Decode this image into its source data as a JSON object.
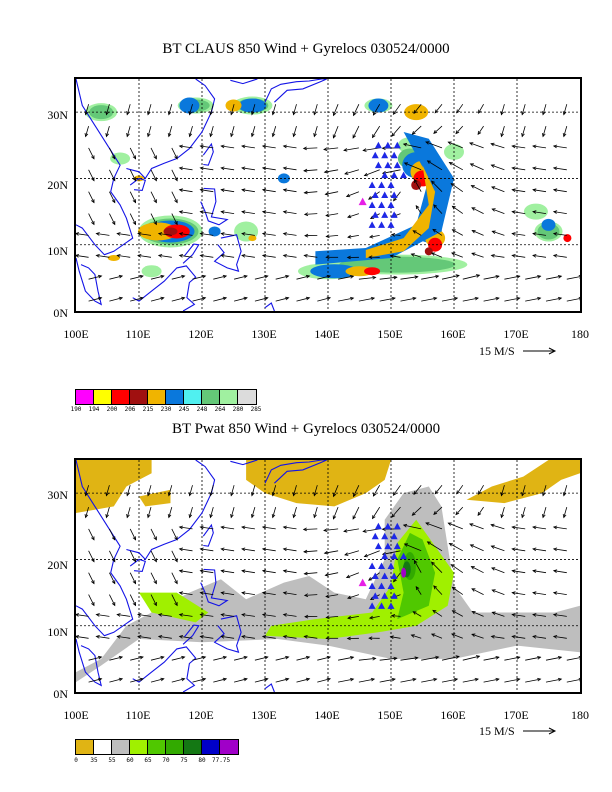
{
  "panels": [
    {
      "title": "BT CLAUS 850 Wind + Gyrelocs 030524/0000",
      "variable": "CLAUS brightness temperature",
      "y_tick_labels": [
        "0N",
        "10N",
        "20N",
        "30N"
      ],
      "x_tick_labels": [
        "100E",
        "110E",
        "120E",
        "130E",
        "140E",
        "150E",
        "160E",
        "170E",
        "180"
      ],
      "vector_scale_label": "15 M/S",
      "legend": {
        "colors": [
          "#ff00ff",
          "#ffff00",
          "#ff0000",
          "#a01010",
          "#f0b400",
          "#0a78dc",
          "#50f0f0",
          "#64c878",
          "#a0f0a0",
          "#dcdcdc"
        ],
        "labels": [
          "190",
          "194",
          "200",
          "206",
          "215",
          "230",
          "245",
          "248",
          "264",
          "280",
          "285"
        ]
      }
    },
    {
      "title": "BT Pwat 850 Wind + Gyrelocs 030524/0000",
      "variable": "Precipitable water",
      "y_tick_labels": [
        "0N",
        "10N",
        "20N",
        "30N"
      ],
      "x_tick_labels": [
        "100E",
        "110E",
        "120E",
        "130E",
        "140E",
        "150E",
        "160E",
        "170E",
        "180"
      ],
      "vector_scale_label": "15 M/S",
      "legend": {
        "colors": [
          "#e0b414",
          "#ffffff",
          "#bebebe",
          "#a0f000",
          "#50c800",
          "#32aa00",
          "#147814",
          "#0000c8",
          "#a000c8"
        ],
        "labels": [
          "0",
          "35",
          "55",
          "60",
          "65",
          "70",
          "75",
          "80",
          "77.75"
        ]
      }
    }
  ],
  "chart_data": [
    {
      "type": "heatmap",
      "title": "BT CLAUS 850 Wind + Gyrelocs 030524/0000",
      "xlim": [
        100,
        180
      ],
      "ylim": [
        0,
        35
      ],
      "x_ticks": [
        100,
        110,
        120,
        130,
        140,
        150,
        160,
        170,
        180
      ],
      "y_ticks": [
        0,
        10,
        20,
        30
      ],
      "grid": true,
      "vector_scale_ms": 15,
      "contour_levels": [
        190,
        194,
        200,
        206,
        215,
        230,
        245,
        248,
        264,
        280,
        285
      ],
      "gyre_locations_blue_triangles": [
        [
          148,
          25
        ],
        [
          149.5,
          25
        ],
        [
          151,
          25
        ],
        [
          147.5,
          23.5
        ],
        [
          149,
          23.5
        ],
        [
          150.5,
          23.5
        ],
        [
          148,
          22
        ],
        [
          149.5,
          22
        ],
        [
          151,
          22
        ],
        [
          149,
          20.5
        ],
        [
          150.5,
          20.5
        ],
        [
          152,
          20.5
        ],
        [
          147,
          19
        ],
        [
          148.5,
          19
        ],
        [
          150,
          19
        ],
        [
          147.5,
          17.5
        ],
        [
          149,
          17.5
        ],
        [
          150.5,
          17.5
        ],
        [
          147,
          16
        ],
        [
          148.5,
          16
        ],
        [
          150,
          16
        ],
        [
          147.5,
          14.5
        ],
        [
          149,
          14.5
        ],
        [
          150.5,
          14.5
        ],
        [
          147,
          13
        ],
        [
          148.5,
          13
        ],
        [
          150,
          13
        ]
      ],
      "best_track_magenta_triangle": [
        145.5,
        16.5
      ],
      "cold_cloud_features": [
        {
          "lon": 115,
          "lat": 12,
          "category": "206"
        },
        {
          "lon": 155,
          "lat": 20,
          "category": "206"
        },
        {
          "lon": 157,
          "lat": 10,
          "category": "206"
        },
        {
          "lon": 178,
          "lat": 11,
          "category": "206"
        },
        {
          "lon": 147,
          "lat": 6,
          "category": "206"
        },
        {
          "lon": 155,
          "lat": 30,
          "category": "215"
        }
      ]
    },
    {
      "type": "heatmap",
      "title": "BT Pwat 850 Wind + Gyrelocs 030524/0000",
      "xlim": [
        100,
        180
      ],
      "ylim": [
        0,
        35
      ],
      "x_ticks": [
        100,
        110,
        120,
        130,
        140,
        150,
        160,
        170,
        180
      ],
      "y_ticks": [
        0,
        10,
        20,
        30
      ],
      "grid": true,
      "vector_scale_ms": 15,
      "contour_levels": [
        0,
        35,
        55,
        60,
        65,
        70,
        75,
        80,
        77.75
      ],
      "gyre_locations_blue_triangles": [
        [
          148,
          25
        ],
        [
          149.5,
          25
        ],
        [
          151,
          25
        ],
        [
          147.5,
          23.5
        ],
        [
          149,
          23.5
        ],
        [
          150.5,
          23.5
        ],
        [
          148,
          22
        ],
        [
          149.5,
          22
        ],
        [
          151,
          22
        ],
        [
          149,
          20.5
        ],
        [
          150.5,
          20.5
        ],
        [
          152,
          20.5
        ],
        [
          147,
          19
        ],
        [
          148.5,
          19
        ],
        [
          150,
          19
        ],
        [
          147.5,
          17.5
        ],
        [
          149,
          17.5
        ],
        [
          150.5,
          17.5
        ],
        [
          147,
          16
        ],
        [
          148.5,
          16
        ],
        [
          150,
          16
        ],
        [
          147.5,
          14.5
        ],
        [
          149,
          14.5
        ],
        [
          150.5,
          14.5
        ],
        [
          147,
          13
        ],
        [
          148.5,
          13
        ],
        [
          150,
          13
        ]
      ],
      "best_track_magenta_triangle": [
        145.5,
        16.5
      ],
      "moisture_core": {
        "lon": 152,
        "lat": 18,
        "category": "75"
      }
    }
  ]
}
